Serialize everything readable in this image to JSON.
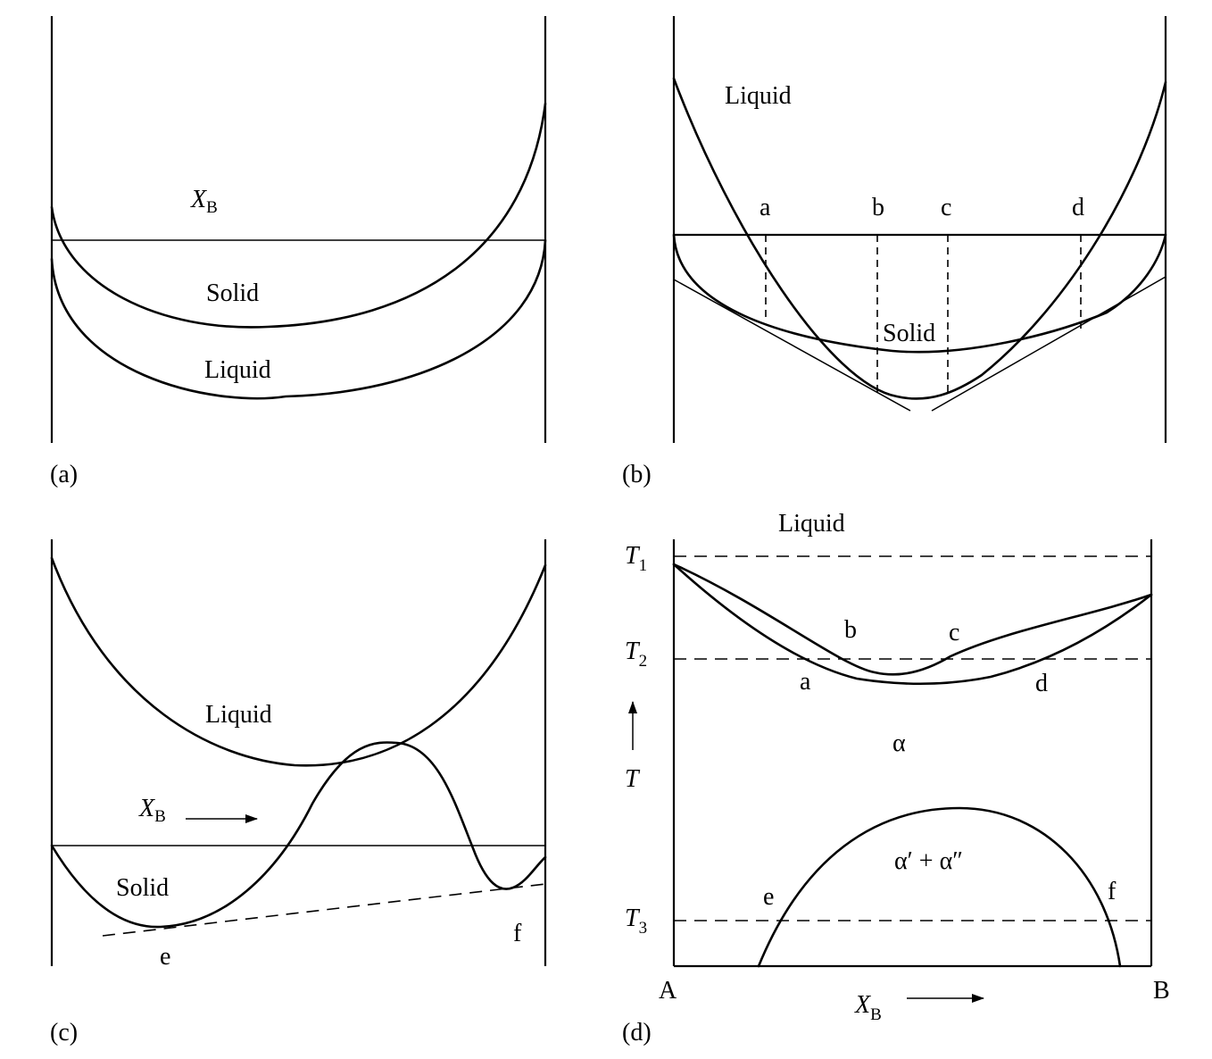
{
  "panels": {
    "a": {
      "caption": "(a)",
      "xb_symbol": "X",
      "xb_subscript": "B",
      "solid_label": "Solid",
      "liquid_label": "Liquid"
    },
    "b": {
      "caption": "(b)",
      "liquid_label": "Liquid",
      "solid_label": "Solid",
      "points": [
        "a",
        "b",
        "c",
        "d"
      ]
    },
    "c": {
      "caption": "(c)",
      "liquid_label": "Liquid",
      "solid_label": "Solid",
      "xb_symbol": "X",
      "xb_subscript": "B",
      "point_e": "e",
      "point_f": "f"
    },
    "d": {
      "caption": "(d)",
      "liquid_label": "Liquid",
      "t1_symbol": "T",
      "t1_subscript": "1",
      "t2_symbol": "T",
      "t2_subscript": "2",
      "t3_symbol": "T",
      "t3_subscript": "3",
      "t_axis": "T",
      "point_a": "a",
      "point_b": "b",
      "point_c": "c",
      "point_d": "d",
      "point_e": "e",
      "point_f": "f",
      "alpha_label": "α",
      "two_phase_label": "α′ + α″",
      "x_left": "A",
      "x_right": "B",
      "xb_symbol": "X",
      "xb_subscript": "B"
    }
  }
}
